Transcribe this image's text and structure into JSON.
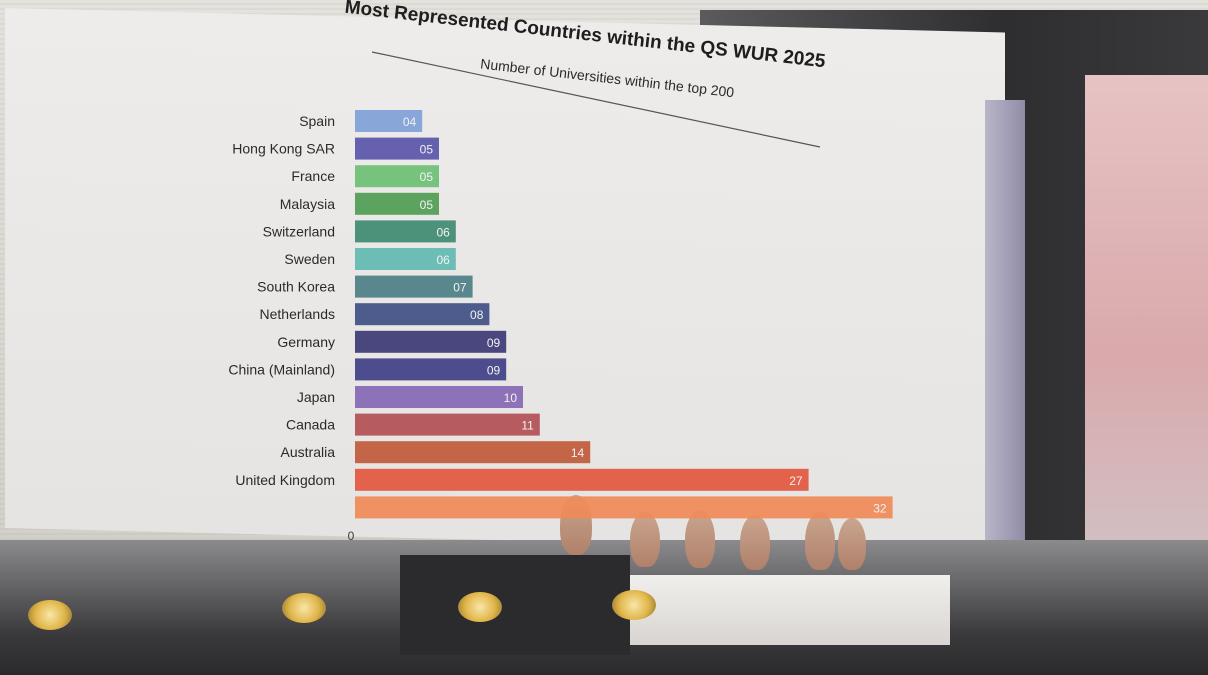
{
  "chart_data": {
    "type": "bar",
    "orientation": "horizontal",
    "title": "Most Represented Countries within the QS WUR 2025",
    "subtitle": "Number of Universities within the top 200",
    "categories": [
      "Spain",
      "Hong Kong SAR",
      "France",
      "Malaysia",
      "Switzerland",
      "Sweden",
      "South Korea",
      "Netherlands",
      "Germany",
      "China (Mainland)",
      "Japan",
      "Canada",
      "Australia",
      "United Kingdom",
      ""
    ],
    "values": [
      4,
      5,
      5,
      5,
      6,
      6,
      7,
      8,
      9,
      9,
      10,
      11,
      14,
      27,
      32
    ],
    "value_labels": [
      "04",
      "05",
      "05",
      "05",
      "06",
      "06",
      "07",
      "08",
      "09",
      "09",
      "10",
      "11",
      "14",
      "27",
      "32"
    ],
    "bar_colors": [
      "#7f9fd6",
      "#5a55a8",
      "#6cbf74",
      "#4f9c52",
      "#3e8a72",
      "#5fb9b1",
      "#4b7e86",
      "#3f4f86",
      "#3c3a76",
      "#3f3f86",
      "#8468b5",
      "#b14f55",
      "#c05a3a",
      "#e2573f",
      "#f08a58"
    ],
    "x_tick_labels": [
      "0"
    ],
    "xlim": [
      0,
      32
    ],
    "grid": false,
    "legend": "none"
  }
}
